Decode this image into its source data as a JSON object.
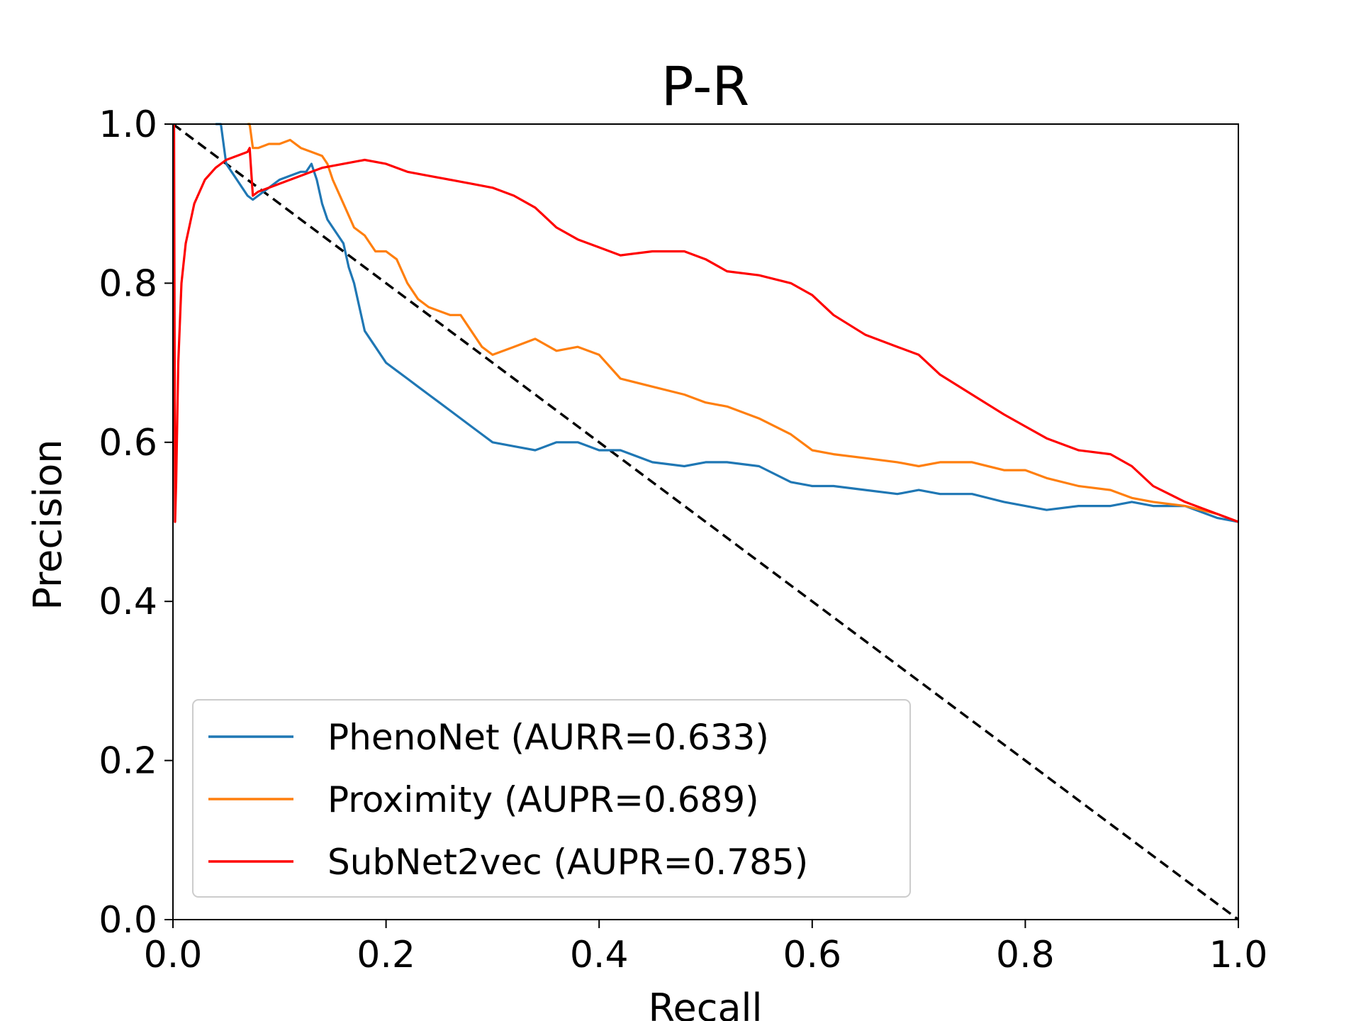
{
  "chart_data": {
    "type": "line",
    "title": "P-R",
    "xlabel": "Recall",
    "ylabel": "Precision",
    "xlim": [
      0.0,
      1.0
    ],
    "ylim": [
      0.0,
      1.0
    ],
    "grid": false,
    "legend_position": "lower-left",
    "x_ticks": [
      "0.0",
      "0.2",
      "0.4",
      "0.6",
      "0.8",
      "1.0"
    ],
    "y_ticks": [
      "0.0",
      "0.2",
      "0.4",
      "0.6",
      "0.8",
      "1.0"
    ],
    "reference_line": {
      "style": "dashed",
      "color": "#000000",
      "x": [
        0.0,
        1.0
      ],
      "y": [
        1.0,
        0.0
      ]
    },
    "series": [
      {
        "name": "PhenoNet (AURR=0.633)",
        "color": "#1f77b4",
        "x": [
          0.04,
          0.045,
          0.05,
          0.055,
          0.06,
          0.065,
          0.07,
          0.075,
          0.08,
          0.09,
          0.1,
          0.11,
          0.12,
          0.125,
          0.13,
          0.135,
          0.14,
          0.145,
          0.15,
          0.155,
          0.16,
          0.165,
          0.17,
          0.175,
          0.18,
          0.19,
          0.2,
          0.21,
          0.22,
          0.23,
          0.24,
          0.25,
          0.26,
          0.27,
          0.28,
          0.29,
          0.3,
          0.32,
          0.34,
          0.36,
          0.38,
          0.4,
          0.42,
          0.45,
          0.48,
          0.5,
          0.52,
          0.55,
          0.58,
          0.6,
          0.62,
          0.65,
          0.68,
          0.7,
          0.72,
          0.75,
          0.78,
          0.8,
          0.82,
          0.85,
          0.88,
          0.9,
          0.92,
          0.95,
          0.98,
          1.0
        ],
        "y": [
          1.0,
          1.0,
          0.95,
          0.94,
          0.93,
          0.92,
          0.91,
          0.905,
          0.91,
          0.92,
          0.93,
          0.935,
          0.94,
          0.94,
          0.95,
          0.93,
          0.9,
          0.88,
          0.87,
          0.86,
          0.85,
          0.82,
          0.8,
          0.77,
          0.74,
          0.72,
          0.7,
          0.69,
          0.68,
          0.67,
          0.66,
          0.65,
          0.64,
          0.63,
          0.62,
          0.61,
          0.6,
          0.595,
          0.59,
          0.6,
          0.6,
          0.59,
          0.59,
          0.575,
          0.57,
          0.575,
          0.575,
          0.57,
          0.55,
          0.545,
          0.545,
          0.54,
          0.535,
          0.54,
          0.535,
          0.535,
          0.525,
          0.52,
          0.515,
          0.52,
          0.52,
          0.525,
          0.52,
          0.52,
          0.505,
          0.5
        ]
      },
      {
        "name": "Proximity (AUPR=0.689)",
        "color": "#ff7f0e",
        "x": [
          0.07,
          0.072,
          0.075,
          0.08,
          0.09,
          0.1,
          0.11,
          0.12,
          0.13,
          0.14,
          0.145,
          0.15,
          0.16,
          0.17,
          0.18,
          0.19,
          0.2,
          0.21,
          0.22,
          0.23,
          0.24,
          0.25,
          0.26,
          0.27,
          0.28,
          0.29,
          0.3,
          0.32,
          0.34,
          0.36,
          0.38,
          0.4,
          0.42,
          0.45,
          0.48,
          0.5,
          0.52,
          0.55,
          0.58,
          0.6,
          0.62,
          0.65,
          0.68,
          0.7,
          0.72,
          0.75,
          0.78,
          0.8,
          0.82,
          0.85,
          0.88,
          0.9,
          0.92,
          0.95,
          0.98,
          1.0
        ],
        "y": [
          1.0,
          1.0,
          0.97,
          0.97,
          0.975,
          0.975,
          0.98,
          0.97,
          0.965,
          0.96,
          0.95,
          0.93,
          0.9,
          0.87,
          0.86,
          0.84,
          0.84,
          0.83,
          0.8,
          0.78,
          0.77,
          0.765,
          0.76,
          0.76,
          0.74,
          0.72,
          0.71,
          0.72,
          0.73,
          0.715,
          0.72,
          0.71,
          0.68,
          0.67,
          0.66,
          0.65,
          0.645,
          0.63,
          0.61,
          0.59,
          0.585,
          0.58,
          0.575,
          0.57,
          0.575,
          0.575,
          0.565,
          0.565,
          0.555,
          0.545,
          0.54,
          0.53,
          0.525,
          0.52,
          0.51,
          0.5
        ]
      },
      {
        "name": "SubNet2vec (AUPR=0.785)",
        "color": "#ff0000",
        "x": [
          0.001,
          0.002,
          0.003,
          0.005,
          0.008,
          0.012,
          0.02,
          0.03,
          0.04,
          0.05,
          0.06,
          0.07,
          0.072,
          0.075,
          0.08,
          0.09,
          0.1,
          0.11,
          0.12,
          0.13,
          0.14,
          0.16,
          0.18,
          0.2,
          0.22,
          0.24,
          0.26,
          0.28,
          0.3,
          0.32,
          0.34,
          0.36,
          0.38,
          0.4,
          0.42,
          0.45,
          0.48,
          0.5,
          0.52,
          0.55,
          0.58,
          0.6,
          0.62,
          0.65,
          0.68,
          0.7,
          0.72,
          0.75,
          0.78,
          0.8,
          0.82,
          0.85,
          0.88,
          0.9,
          0.92,
          0.95,
          0.98,
          1.0
        ],
        "y": [
          1.0,
          0.5,
          0.55,
          0.7,
          0.8,
          0.85,
          0.9,
          0.93,
          0.945,
          0.955,
          0.96,
          0.965,
          0.97,
          0.91,
          0.915,
          0.92,
          0.925,
          0.93,
          0.935,
          0.94,
          0.945,
          0.95,
          0.955,
          0.95,
          0.94,
          0.935,
          0.93,
          0.925,
          0.92,
          0.91,
          0.895,
          0.87,
          0.855,
          0.845,
          0.835,
          0.84,
          0.84,
          0.83,
          0.815,
          0.81,
          0.8,
          0.785,
          0.76,
          0.735,
          0.72,
          0.71,
          0.685,
          0.66,
          0.635,
          0.62,
          0.605,
          0.59,
          0.585,
          0.57,
          0.545,
          0.525,
          0.51,
          0.5
        ]
      }
    ]
  }
}
